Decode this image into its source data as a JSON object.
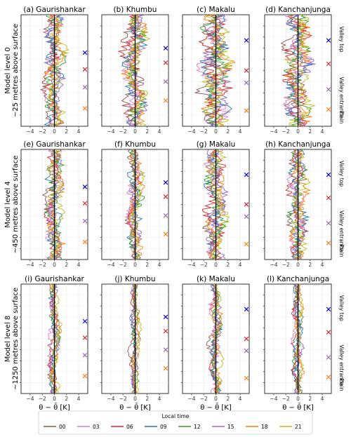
{
  "chart_data": {
    "type": "line",
    "xlabel": "θ − θ̄ [K]",
    "xlim": [
      -5.5,
      5.5
    ],
    "xticks": [
      -4,
      -2,
      0,
      2,
      4
    ],
    "rows": [
      {
        "label_line1": "Model level 0",
        "label_line2": "~25 metres above surface"
      },
      {
        "label_line1": "Model level 4",
        "label_line2": "~450 metres above surface"
      },
      {
        "label_line1": "Model level 8",
        "label_line2": "~1250 metres above surface"
      }
    ],
    "panels": [
      {
        "title": "(a) Gaurishankar"
      },
      {
        "title": "(b) Khumbu"
      },
      {
        "title": "(c) Makalu"
      },
      {
        "title": "(d) Kanchanjunga"
      },
      {
        "title": "(e) Gaurishankar"
      },
      {
        "title": "(f) Khumbu"
      },
      {
        "title": "(g) Makalu"
      },
      {
        "title": "(h) Kanchanjunga"
      },
      {
        "title": "(i) Gaurishankar"
      },
      {
        "title": "(j) Khumbu"
      },
      {
        "title": "(k) Makalu"
      },
      {
        "title": "(l) Kanchanjunga"
      }
    ],
    "side_labels": {
      "valley_top": "Valley top",
      "valley_entrance": "Valley entrance",
      "plain": "Plain"
    },
    "legend": {
      "title": "Local time",
      "placement": "bottom",
      "series": [
        {
          "name": "00",
          "color": "#8c564b"
        },
        {
          "name": "03",
          "color": "#e377c2"
        },
        {
          "name": "06",
          "color": "#d62728"
        },
        {
          "name": "09",
          "color": "#1f77b4"
        },
        {
          "name": "12",
          "color": "#2ca02c"
        },
        {
          "name": "15",
          "color": "#9467bd"
        },
        {
          "name": "18",
          "color": "#ff7f0e"
        },
        {
          "name": "21",
          "color": "#bcbd22"
        }
      ]
    },
    "markers": [
      {
        "color": "#0000cc"
      },
      {
        "color": "#d62728"
      },
      {
        "color": "#9467bd"
      },
      {
        "color": "#ff7f0e"
      }
    ]
  }
}
